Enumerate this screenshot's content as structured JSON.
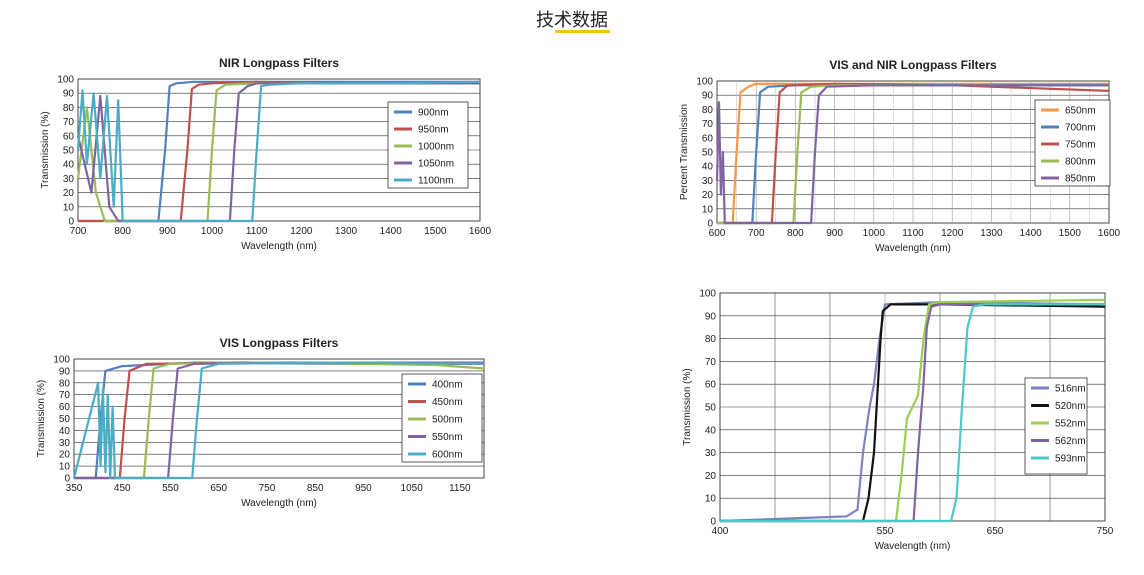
{
  "heading": "技术数据",
  "chart_data": [
    {
      "type": "line",
      "title": "NIR Longpass Filters",
      "xlabel": "Wavelength (nm)",
      "ylabel": "Transmission (%)",
      "xlim": [
        700,
        1600
      ],
      "ylim": [
        0,
        100
      ],
      "xticks": [
        700,
        800,
        900,
        1000,
        1100,
        1200,
        1300,
        1400,
        1500,
        1600
      ],
      "yticks": [
        0,
        10,
        20,
        30,
        40,
        50,
        60,
        70,
        80,
        90,
        100
      ],
      "grid": "horizontal",
      "legend_position": "right",
      "series": [
        {
          "name": "900nm",
          "color": "#4f81bd",
          "x": [
            700,
            880,
            895,
            905,
            920,
            960,
            1100,
            1300,
            1600
          ],
          "y": [
            0,
            0,
            50,
            95,
            97,
            98,
            98,
            98,
            98
          ]
        },
        {
          "name": "950nm",
          "color": "#c0504d",
          "x": [
            700,
            930,
            945,
            955,
            970,
            1000,
            1100,
            1300,
            1600
          ],
          "y": [
            0,
            0,
            50,
            93,
            96,
            97,
            98,
            97,
            97
          ]
        },
        {
          "name": "1000nm",
          "color": "#9bbb59",
          "x": [
            700,
            720,
            740,
            760,
            780,
            990,
            1000,
            1010,
            1030,
            1100,
            1300,
            1600
          ],
          "y": [
            30,
            80,
            20,
            0,
            0,
            0,
            50,
            92,
            96,
            97,
            97,
            97
          ]
        },
        {
          "name": "1050nm",
          "color": "#8064a2",
          "x": [
            700,
            730,
            750,
            770,
            790,
            1040,
            1050,
            1060,
            1080,
            1100,
            1300,
            1600
          ],
          "y": [
            60,
            20,
            88,
            10,
            0,
            0,
            50,
            90,
            95,
            97,
            97,
            97
          ]
        },
        {
          "name": "1100nm",
          "color": "#4bacc6",
          "x": [
            700,
            710,
            720,
            735,
            750,
            765,
            780,
            790,
            800,
            1090,
            1100,
            1110,
            1130,
            1200,
            1400,
            1600
          ],
          "y": [
            50,
            92,
            40,
            90,
            30,
            88,
            10,
            85,
            0,
            0,
            50,
            95,
            96,
            97,
            97,
            98
          ]
        }
      ]
    },
    {
      "type": "line",
      "title": "VIS and NIR Longpass Filters",
      "xlabel": "Wavelength (nm)",
      "ylabel": "Percent Transmission",
      "xlim": [
        600,
        1600
      ],
      "ylim": [
        0,
        100
      ],
      "xticks": [
        600,
        700,
        800,
        900,
        1000,
        1100,
        1200,
        1300,
        1400,
        1500,
        1600
      ],
      "yticks": [
        0,
        10,
        20,
        30,
        40,
        50,
        60,
        70,
        80,
        90,
        100
      ],
      "grid": "both",
      "legend_position": "right",
      "series": [
        {
          "name": "650nm",
          "color": "#f79646",
          "x": [
            600,
            640,
            650,
            660,
            680,
            700,
            800,
            1200,
            1600
          ],
          "y": [
            0,
            0,
            50,
            92,
            96,
            98,
            98,
            98,
            98
          ]
        },
        {
          "name": "700nm",
          "color": "#4f81bd",
          "x": [
            600,
            690,
            700,
            710,
            730,
            800,
            1200,
            1600
          ],
          "y": [
            0,
            0,
            50,
            92,
            96,
            97,
            97,
            97
          ]
        },
        {
          "name": "750nm",
          "color": "#c0504d",
          "x": [
            600,
            740,
            750,
            760,
            780,
            900,
            1200,
            1600
          ],
          "y": [
            0,
            0,
            50,
            92,
            97,
            98,
            97,
            93
          ]
        },
        {
          "name": "800nm",
          "color": "#9bbb59",
          "x": [
            600,
            795,
            805,
            815,
            840,
            900,
            1200,
            1600
          ],
          "y": [
            0,
            0,
            50,
            92,
            96,
            97,
            97,
            97
          ]
        },
        {
          "name": "850nm",
          "color": "#8064a2",
          "x": [
            600,
            605,
            610,
            615,
            620,
            840,
            850,
            860,
            880,
            1000,
            1200,
            1600
          ],
          "y": [
            30,
            85,
            20,
            50,
            0,
            0,
            50,
            90,
            96,
            97,
            97,
            97
          ]
        }
      ]
    },
    {
      "type": "line",
      "title": "VIS Longpass Filters",
      "xlabel": "Wavelength (nm)",
      "ylabel": "Transmission (%)",
      "xlim": [
        350,
        1200
      ],
      "ylim": [
        0,
        100
      ],
      "xticks": [
        350,
        450,
        550,
        650,
        750,
        850,
        950,
        1050,
        1150
      ],
      "yticks": [
        0,
        10,
        20,
        30,
        40,
        50,
        60,
        70,
        80,
        90,
        100
      ],
      "grid": "horizontal",
      "legend_position": "right",
      "series": [
        {
          "name": "400nm",
          "color": "#4f81bd",
          "x": [
            350,
            395,
            405,
            415,
            450,
            600,
            900,
            1200
          ],
          "y": [
            0,
            0,
            50,
            90,
            94,
            97,
            96,
            96
          ]
        },
        {
          "name": "450nm",
          "color": "#c0504d",
          "x": [
            350,
            445,
            455,
            465,
            500,
            700,
            1000,
            1200
          ],
          "y": [
            0,
            0,
            50,
            90,
            96,
            97,
            96,
            96
          ]
        },
        {
          "name": "500nm",
          "color": "#9bbb59",
          "x": [
            350,
            495,
            505,
            515,
            550,
            800,
            1100,
            1200
          ],
          "y": [
            0,
            0,
            50,
            92,
            96,
            97,
            95,
            92
          ]
        },
        {
          "name": "550nm",
          "color": "#8064a2",
          "x": [
            350,
            545,
            555,
            565,
            600,
            800,
            1200
          ],
          "y": [
            0,
            0,
            50,
            92,
            96,
            97,
            97
          ]
        },
        {
          "name": "600nm",
          "color": "#4bacc6",
          "x": [
            350,
            400,
            405,
            410,
            415,
            420,
            425,
            430,
            435,
            440,
            595,
            605,
            615,
            650,
            900,
            1200
          ],
          "y": [
            0,
            80,
            10,
            75,
            5,
            70,
            0,
            60,
            0,
            0,
            0,
            50,
            92,
            96,
            97,
            96
          ]
        }
      ]
    },
    {
      "type": "line",
      "title": "",
      "xlabel": "Wavelength (nm)",
      "ylabel": "Transmission (%)",
      "xlim": [
        400,
        750
      ],
      "ylim": [
        0,
        100
      ],
      "xticks": [
        400,
        550,
        650,
        750
      ],
      "yticks": [
        0,
        10,
        20,
        30,
        40,
        50,
        60,
        70,
        80,
        90,
        100
      ],
      "grid": "both",
      "legend_position": "right",
      "series": [
        {
          "name": "516nm",
          "color": "#7d84c0",
          "x": [
            400,
            515,
            525,
            530,
            536,
            540,
            545,
            550,
            600,
            750
          ],
          "y": [
            0,
            2,
            5,
            30,
            50,
            60,
            80,
            95,
            96,
            95
          ]
        },
        {
          "name": "520nm",
          "color": "#111111",
          "x": [
            400,
            530,
            535,
            540,
            543,
            546,
            548,
            555,
            600,
            750
          ],
          "y": [
            0,
            0,
            10,
            30,
            55,
            80,
            92,
            95,
            95,
            94
          ]
        },
        {
          "name": "552nm",
          "color": "#9bcf4f",
          "x": [
            400,
            560,
            565,
            570,
            575,
            580,
            585,
            590,
            600,
            750
          ],
          "y": [
            0,
            0,
            20,
            45,
            50,
            55,
            80,
            95,
            96,
            97
          ]
        },
        {
          "name": "562nm",
          "color": "#8064a2",
          "x": [
            400,
            576,
            580,
            585,
            588,
            592,
            600,
            650,
            750
          ],
          "y": [
            0,
            0,
            30,
            60,
            85,
            94,
            95,
            95,
            95
          ]
        },
        {
          "name": "593nm",
          "color": "#4bc8c8",
          "x": [
            400,
            610,
            615,
            620,
            625,
            630,
            640,
            700,
            750
          ],
          "y": [
            0,
            0,
            10,
            50,
            85,
            94,
            95,
            95,
            95
          ]
        }
      ]
    }
  ]
}
